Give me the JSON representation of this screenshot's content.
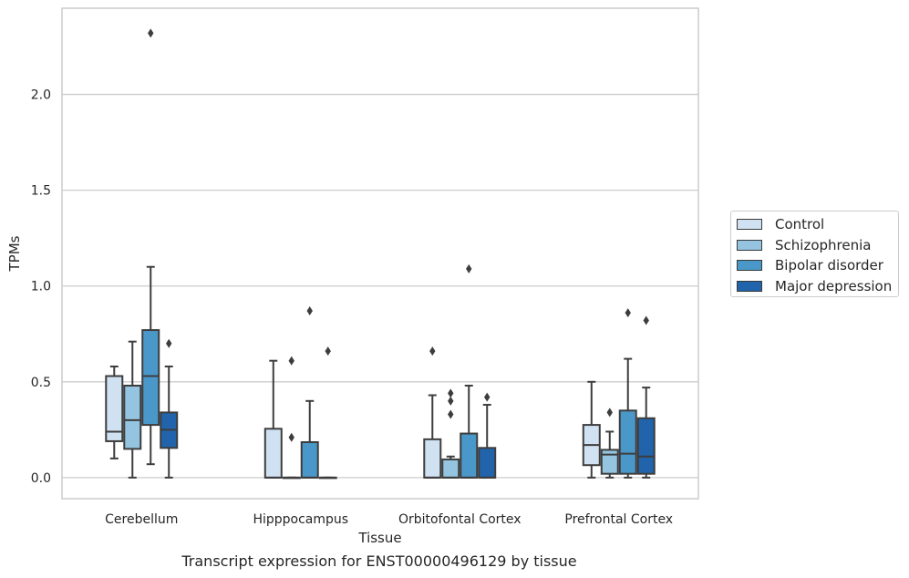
{
  "chart_data": {
    "type": "box",
    "title": "",
    "caption": "Transcript expression for ENST00000496129 by tissue",
    "xlabel": "Tissue",
    "ylabel": "TPMs",
    "ylim": [
      -0.11,
      2.45
    ],
    "yticks": [
      0.0,
      0.5,
      1.0,
      1.5,
      2.0
    ],
    "ytick_labels": [
      "0.0",
      "0.5",
      "1.0",
      "1.5",
      "2.0"
    ],
    "grid": "horizontal",
    "legend_position": "right",
    "categories": [
      "Cerebellum",
      "Hipppocampus",
      "Orbitofontal Cortex",
      "Prefrontal Cortex"
    ],
    "series": [
      {
        "name": "Control",
        "color": "#d0e1f2",
        "boxes": [
          {
            "whislo": 0.1,
            "q1": 0.19,
            "med": 0.24,
            "q3": 0.53,
            "whishi": 0.58,
            "fliers": []
          },
          {
            "whislo": 0.0,
            "q1": 0.0,
            "med": 0.0,
            "q3": 0.255,
            "whishi": 0.61,
            "fliers": []
          },
          {
            "whislo": 0.0,
            "q1": 0.0,
            "med": 0.0,
            "q3": 0.2,
            "whishi": 0.43,
            "fliers": [
              0.66
            ]
          },
          {
            "whislo": 0.0,
            "q1": 0.065,
            "med": 0.17,
            "q3": 0.275,
            "whishi": 0.5,
            "fliers": []
          }
        ]
      },
      {
        "name": "Schizophrenia",
        "color": "#94c4df",
        "boxes": [
          {
            "whislo": 0.0,
            "q1": 0.15,
            "med": 0.3,
            "q3": 0.48,
            "whishi": 0.71,
            "fliers": []
          },
          {
            "whislo": 0.0,
            "q1": 0.0,
            "med": 0.0,
            "q3": 0.0,
            "whishi": 0.0,
            "fliers": [
              0.21,
              0.61
            ]
          },
          {
            "whislo": 0.0,
            "q1": 0.0,
            "med": 0.0,
            "q3": 0.095,
            "whishi": 0.11,
            "fliers": [
              0.33,
              0.4,
              0.44
            ]
          },
          {
            "whislo": 0.0,
            "q1": 0.02,
            "med": 0.12,
            "q3": 0.145,
            "whishi": 0.24,
            "fliers": [
              0.34
            ]
          }
        ]
      },
      {
        "name": "Bipolar disorder",
        "color": "#4a98c9",
        "boxes": [
          {
            "whislo": 0.07,
            "q1": 0.275,
            "med": 0.53,
            "q3": 0.77,
            "whishi": 1.1,
            "fliers": [
              2.32
            ]
          },
          {
            "whislo": 0.0,
            "q1": 0.0,
            "med": 0.0,
            "q3": 0.185,
            "whishi": 0.4,
            "fliers": [
              0.87
            ]
          },
          {
            "whislo": 0.0,
            "q1": 0.0,
            "med": 0.0,
            "q3": 0.23,
            "whishi": 0.48,
            "fliers": [
              1.09
            ]
          },
          {
            "whislo": 0.0,
            "q1": 0.02,
            "med": 0.125,
            "q3": 0.35,
            "whishi": 0.62,
            "fliers": [
              0.86
            ]
          }
        ]
      },
      {
        "name": "Major depression",
        "color": "#2164ab",
        "boxes": [
          {
            "whislo": 0.0,
            "q1": 0.155,
            "med": 0.25,
            "q3": 0.34,
            "whishi": 0.58,
            "fliers": [
              0.7
            ]
          },
          {
            "whislo": 0.0,
            "q1": 0.0,
            "med": 0.0,
            "q3": 0.0,
            "whishi": 0.0,
            "fliers": [
              0.66
            ]
          },
          {
            "whislo": 0.0,
            "q1": 0.0,
            "med": 0.0,
            "q3": 0.155,
            "whishi": 0.38,
            "fliers": [
              0.42
            ]
          },
          {
            "whislo": 0.0,
            "q1": 0.02,
            "med": 0.11,
            "q3": 0.31,
            "whishi": 0.47,
            "fliers": [
              0.82
            ]
          }
        ]
      }
    ]
  }
}
